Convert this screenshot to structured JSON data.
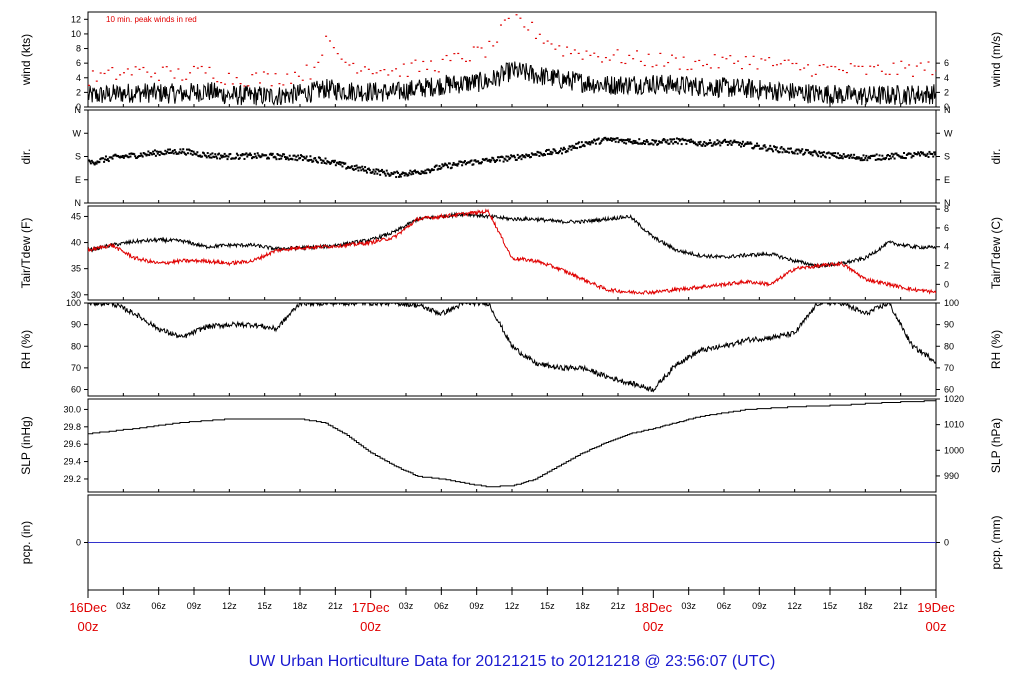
{
  "footer": {
    "title": "UW Urban Horticulture Data for 20121215  to  20121218 @ 23:56:07  (UTC)",
    "color": "#1a1ad0"
  },
  "colors": {
    "line": "#000000",
    "accent": "#e00000",
    "pcp": "#3333cc",
    "axis": "#000000"
  },
  "chart_data": [
    {
      "type": "line",
      "ylabel": "wind (kts)",
      "ylabel_right": "wind (m/s)",
      "ylim": [
        0,
        13
      ],
      "ticks_left": [
        0,
        2,
        4,
        6,
        8,
        10,
        12
      ],
      "ticks_right": [
        "0",
        "2",
        "4",
        "6"
      ],
      "ticks_right_values": [
        0,
        2,
        4,
        6
      ],
      "annotation": "10 min. peak winds in red",
      "x": [
        0,
        4,
        8,
        10,
        12,
        16,
        19,
        20,
        22,
        26,
        30,
        34,
        36,
        40,
        44,
        48,
        52,
        56,
        60,
        66,
        72
      ],
      "series": [
        {
          "values": [
            1.5,
            2,
            1.8,
            2.2,
            1.6,
            1.5,
            2,
            2.5,
            2.2,
            2,
            3,
            3.5,
            5,
            3.8,
            3,
            3.2,
            2.8,
            2.5,
            2,
            1.5,
            1.8
          ]
        },
        {
          "values": [
            4,
            5,
            4.5,
            5,
            4,
            4,
            5,
            9,
            6,
            5,
            6,
            8,
            12.5,
            8,
            7,
            6.5,
            6,
            6.5,
            5.5,
            5,
            5.5
          ],
          "render": "points"
        }
      ]
    },
    {
      "type": "scatter",
      "ylabel": "dir.",
      "ylabel_right": "dir.",
      "ylim": [
        0,
        360
      ],
      "ticks": [
        "N",
        "E",
        "S",
        "W",
        "N"
      ],
      "ticks_values": [
        0,
        90,
        180,
        270,
        360
      ],
      "x": [
        0,
        2,
        4,
        6,
        8,
        10,
        12,
        14,
        16,
        18,
        20,
        22,
        24,
        26,
        28,
        30,
        32,
        34,
        36,
        38,
        40,
        42,
        44,
        46,
        48,
        50,
        52,
        54,
        56,
        58,
        60,
        62,
        64,
        66,
        68,
        70,
        72
      ],
      "series": [
        {
          "values": [
            155,
            175,
            185,
            195,
            200,
            185,
            180,
            182,
            180,
            175,
            165,
            140,
            125,
            110,
            120,
            140,
            155,
            165,
            175,
            190,
            200,
            230,
            245,
            240,
            235,
            240,
            230,
            235,
            225,
            210,
            200,
            190,
            180,
            175,
            180,
            185,
            190
          ]
        }
      ]
    },
    {
      "type": "line",
      "ylabel": "Tair/Tdew (F)",
      "ylabel_right": "Tair/Tdew (C)",
      "ylim": [
        29,
        47
      ],
      "ticks_left": [
        30,
        35,
        40,
        45
      ],
      "ticks_right": [
        "0",
        "2",
        "4",
        "6",
        "8"
      ],
      "ticks_right_values": [
        32,
        35.6,
        39.2,
        42.8,
        46.4
      ],
      "x": [
        0,
        2,
        4,
        6,
        8,
        10,
        12,
        14,
        16,
        18,
        20,
        22,
        24,
        26,
        28,
        30,
        32,
        34,
        36,
        38,
        40,
        42,
        44,
        46,
        48,
        50,
        52,
        54,
        56,
        58,
        60,
        62,
        64,
        66,
        68,
        70,
        72
      ],
      "series": [
        {
          "values": [
            38.5,
            39.5,
            40.2,
            40.5,
            40.3,
            39.2,
            39.5,
            39.5,
            38.8,
            39,
            39.2,
            39.8,
            40.5,
            42,
            44.5,
            45,
            45.5,
            45,
            44.5,
            44.5,
            44,
            44,
            44.5,
            45,
            41,
            38.5,
            37.5,
            37.2,
            37.6,
            37.8,
            36.5,
            35.5,
            36,
            37,
            40,
            39.2,
            39
          ]
        },
        {
          "values": [
            38.5,
            39.5,
            37,
            36,
            36.5,
            36.5,
            36,
            36.5,
            38.5,
            39,
            39.2,
            39.5,
            40,
            41,
            44.5,
            45,
            45.5,
            46,
            37,
            36.5,
            35,
            33,
            31,
            30.5,
            30.5,
            31,
            31.5,
            32,
            32.5,
            32,
            35,
            35.5,
            36,
            33,
            32,
            31,
            30.5
          ]
        }
      ]
    },
    {
      "type": "line",
      "ylabel": "RH (%)",
      "ylabel_right": "RH (%)",
      "ylim": [
        57,
        100
      ],
      "ticks_left": [
        60,
        70,
        80,
        90,
        100
      ],
      "ticks_right": [
        "60",
        "70",
        "80",
        "90",
        "100"
      ],
      "ticks_right_values": [
        60,
        70,
        80,
        90,
        100
      ],
      "x": [
        0,
        2,
        4,
        6,
        8,
        10,
        12,
        14,
        16,
        18,
        20,
        22,
        24,
        26,
        28,
        30,
        32,
        34,
        36,
        38,
        40,
        42,
        44,
        46,
        48,
        50,
        52,
        54,
        56,
        58,
        60,
        62,
        64,
        66,
        68,
        70,
        72
      ],
      "series": [
        {
          "values": [
            100,
            100,
            95,
            88,
            84,
            89,
            90,
            90,
            88,
            100,
            100,
            100,
            100,
            100,
            99,
            95,
            100,
            100,
            80,
            72,
            70,
            70,
            66,
            63,
            60,
            72,
            78,
            80,
            83,
            84,
            86,
            100,
            100,
            95,
            100,
            80,
            73
          ]
        }
      ]
    },
    {
      "type": "line",
      "ylabel": "SLP (inHg)",
      "ylabel_right": "SLP (hPa)",
      "ylim": [
        29.05,
        30.12
      ],
      "ticks_left": [
        29.2,
        29.4,
        29.6,
        29.8,
        30.0
      ],
      "tick_labels_left": [
        "29.2",
        "29.4",
        "29.6",
        "29.8",
        "30.0"
      ],
      "ticks_right": [
        "990",
        "1000",
        "1010",
        "1020"
      ],
      "ticks_right_values": [
        29.235,
        29.53,
        29.825,
        30.12
      ],
      "x": [
        0,
        4,
        8,
        12,
        16,
        18,
        20,
        22,
        24,
        26,
        28,
        30,
        32,
        34,
        36,
        38,
        40,
        42,
        44,
        46,
        48,
        50,
        52,
        56,
        60,
        64,
        68,
        72
      ],
      "series": [
        {
          "values": [
            29.72,
            29.78,
            29.85,
            29.89,
            29.89,
            29.89,
            29.85,
            29.7,
            29.5,
            29.35,
            29.23,
            29.2,
            29.15,
            29.11,
            29.12,
            29.2,
            29.35,
            29.5,
            29.62,
            29.72,
            29.78,
            29.85,
            29.92,
            30.0,
            30.03,
            30.05,
            30.08,
            30.1
          ]
        }
      ]
    },
    {
      "type": "line",
      "ylabel": "pcp. (in)",
      "ylabel_right": "pcp. (mm)",
      "ylim": [
        -1,
        1
      ],
      "ticks_left": [
        0
      ],
      "ticks_right": [
        "0"
      ],
      "ticks_right_values": [
        0
      ],
      "x": [
        0,
        72
      ],
      "series": [
        {
          "values": [
            0,
            0
          ]
        }
      ]
    }
  ],
  "x_axis": {
    "xlim": [
      0,
      72
    ],
    "hour_ticks": [
      {
        "x": 3,
        "label": "03z"
      },
      {
        "x": 6,
        "label": "06z"
      },
      {
        "x": 9,
        "label": "09z"
      },
      {
        "x": 12,
        "label": "12z"
      },
      {
        "x": 15,
        "label": "15z"
      },
      {
        "x": 18,
        "label": "18z"
      },
      {
        "x": 21,
        "label": "21z"
      },
      {
        "x": 27,
        "label": "03z"
      },
      {
        "x": 30,
        "label": "06z"
      },
      {
        "x": 33,
        "label": "09z"
      },
      {
        "x": 36,
        "label": "12z"
      },
      {
        "x": 39,
        "label": "15z"
      },
      {
        "x": 42,
        "label": "18z"
      },
      {
        "x": 45,
        "label": "21z"
      },
      {
        "x": 51,
        "label": "03z"
      },
      {
        "x": 54,
        "label": "06z"
      },
      {
        "x": 57,
        "label": "09z"
      },
      {
        "x": 60,
        "label": "12z"
      },
      {
        "x": 63,
        "label": "15z"
      },
      {
        "x": 66,
        "label": "18z"
      },
      {
        "x": 69,
        "label": "21z"
      }
    ],
    "day_ticks": [
      {
        "x": 0,
        "label1": "16Dec",
        "label2": "00z"
      },
      {
        "x": 24,
        "label1": "17Dec",
        "label2": "00z"
      },
      {
        "x": 48,
        "label1": "18Dec",
        "label2": "00z"
      },
      {
        "x": 72,
        "label1": "19Dec",
        "label2": "00z"
      }
    ]
  }
}
